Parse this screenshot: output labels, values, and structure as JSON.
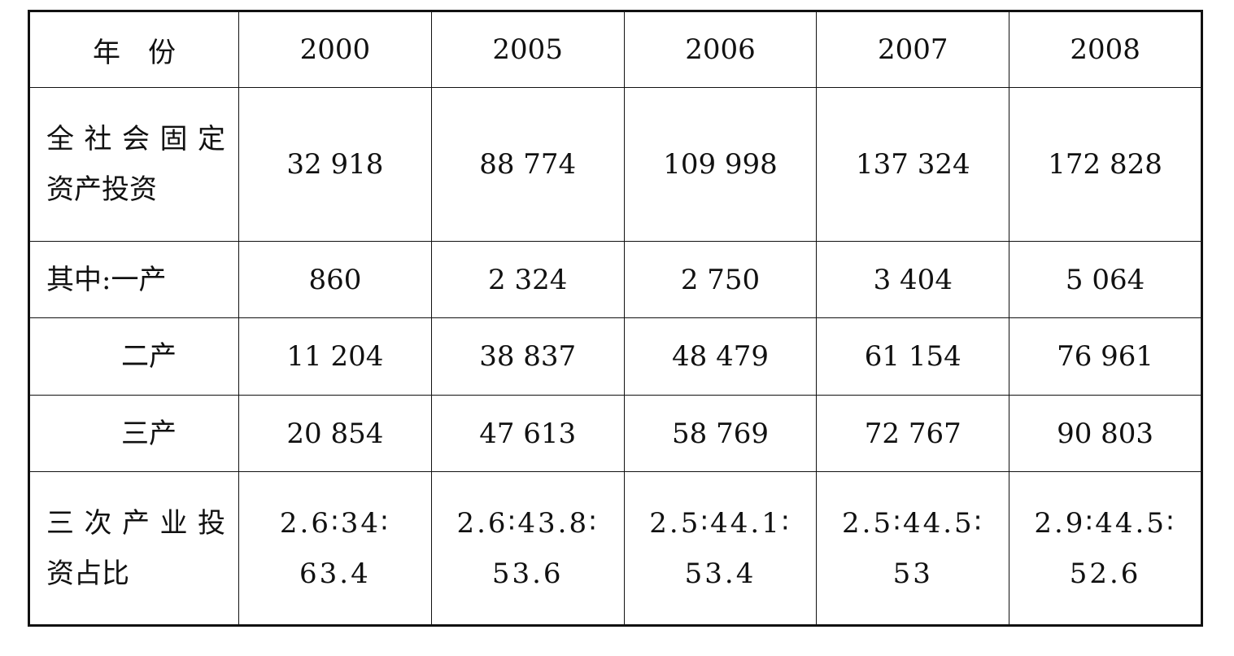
{
  "table": {
    "header": {
      "label": "年　份",
      "years": [
        "2000",
        "2005",
        "2006",
        "2007",
        "2008"
      ]
    },
    "rows": [
      {
        "label_lines": [
          "全社会固定",
          "资产投资"
        ],
        "values": [
          "32 918",
          "88 774",
          "109 998",
          "137 324",
          "172 828"
        ]
      },
      {
        "label_lines": [
          "其中:一产"
        ],
        "values": [
          "860",
          "2 324",
          "2 750",
          "3 404",
          "5 064"
        ]
      },
      {
        "label_lines": [
          "二产"
        ],
        "values": [
          "11 204",
          "38 837",
          "48 479",
          "61 154",
          "76 961"
        ]
      },
      {
        "label_lines": [
          "三产"
        ],
        "values": [
          "20 854",
          "47 613",
          "58 769",
          "72 767",
          "90 803"
        ]
      },
      {
        "label_lines": [
          "三次产业投",
          "资占比"
        ],
        "values": [
          [
            "2.6∶34∶",
            "63.4"
          ],
          [
            "2.6∶43.8∶",
            "53.6"
          ],
          [
            "2.5∶44.1∶",
            "53.4"
          ],
          [
            "2.5∶44.5∶",
            "53"
          ],
          [
            "2.9∶44.5∶",
            "52.6"
          ]
        ]
      }
    ]
  }
}
